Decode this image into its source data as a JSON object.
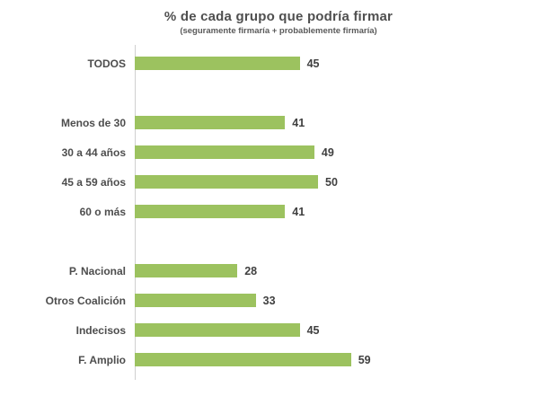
{
  "chart_data": {
    "type": "bar",
    "orientation": "horizontal",
    "title": "% de cada grupo que podría firmar",
    "subtitle": "(seguramente firmaría + probablemente firmaría)",
    "categories": [
      "TODOS",
      "Menos de 30",
      "30 a 44 años",
      "45 a 59 años",
      "60 o más",
      "P. Nacional",
      "Otros Coalición",
      "Indecisos",
      "F. Amplio"
    ],
    "values": [
      45,
      41,
      49,
      50,
      41,
      28,
      33,
      45,
      59
    ],
    "groups": [
      {
        "categories": [
          "TODOS"
        ],
        "values": [
          45
        ]
      },
      {
        "categories": [
          "Menos de 30",
          "30 a 44 años",
          "45 a 59 años",
          "60 o más"
        ],
        "values": [
          41,
          49,
          50,
          41
        ]
      },
      {
        "categories": [
          "P. Nacional",
          "Otros Coalición",
          "Indecisos",
          "F. Amplio"
        ],
        "values": [
          28,
          33,
          45,
          59
        ]
      }
    ],
    "xlim": [
      0,
      75
    ],
    "xlabel": "",
    "ylabel": "",
    "data_labels": true,
    "grid": false,
    "legend": false,
    "bar_color": "#9cc25f",
    "axis_line_color": "#cfcfcf",
    "label_color": "#4d4d4d",
    "title_color": "#4f4f4f"
  }
}
